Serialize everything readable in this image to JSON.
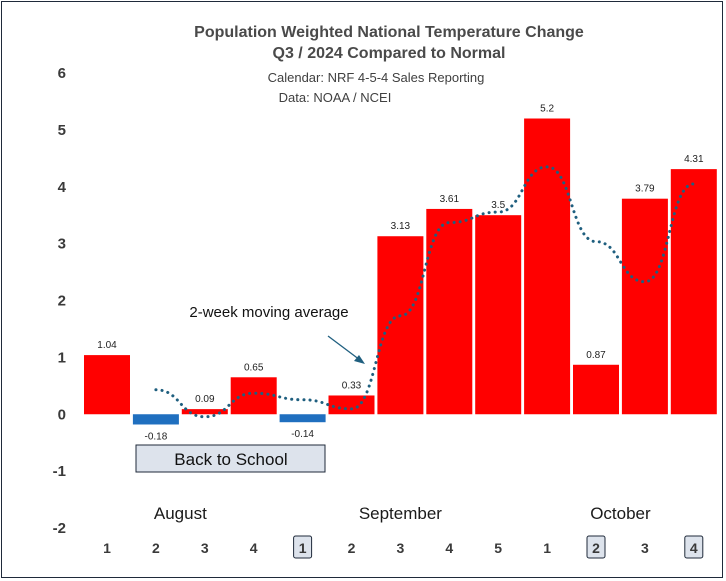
{
  "chart_data": {
    "type": "bar",
    "title": "Population Weighted National Temperature Change",
    "title_line2": "Q3 / 2024 Compared to Normal",
    "subtitle": "Calendar: NRF 4-5-4 Sales Reporting",
    "subtitle2": "Data: NOAA / NCEI",
    "categories": [
      "1",
      "2",
      "3",
      "4",
      "1",
      "2",
      "3",
      "4",
      "5",
      "1",
      "2",
      "3",
      "4"
    ],
    "values": [
      1.04,
      -0.18,
      0.09,
      0.65,
      -0.14,
      0.33,
      3.13,
      3.61,
      3.5,
      5.2,
      0.87,
      3.79,
      4.31
    ],
    "value_labels": [
      "1.04",
      "-0.18",
      "0.09",
      "0.65",
      "-0.14",
      "0.33",
      "3.13",
      "3.61",
      "3.5",
      "5.2",
      "0.87",
      "3.79",
      "4.31"
    ],
    "highlighted_weeks": [
      4,
      10,
      12
    ],
    "moving_average": {
      "name": "2-week moving average",
      "values": [
        null,
        0.43,
        -0.045,
        0.37,
        0.255,
        0.095,
        1.73,
        3.37,
        3.555,
        4.35,
        3.035,
        2.33,
        4.05
      ]
    },
    "months": [
      {
        "label": "August",
        "start": 0,
        "end": 3
      },
      {
        "label": "September",
        "start": 4,
        "end": 8
      },
      {
        "label": "October",
        "start": 9,
        "end": 12
      }
    ],
    "callout": "Back to School",
    "y_ticks": [
      "6",
      "5",
      "4",
      "3",
      "2",
      "1",
      "0",
      "-1",
      "-2"
    ],
    "ylim": [
      -2,
      6
    ],
    "xlabel": "",
    "ylabel": "",
    "colors": {
      "positive": "#ff0000",
      "negative": "#1f6fbf",
      "moving_average": "#1f5f7f",
      "callout_fill": "#dde3ec",
      "callout_border": "#1f2a3a"
    }
  }
}
